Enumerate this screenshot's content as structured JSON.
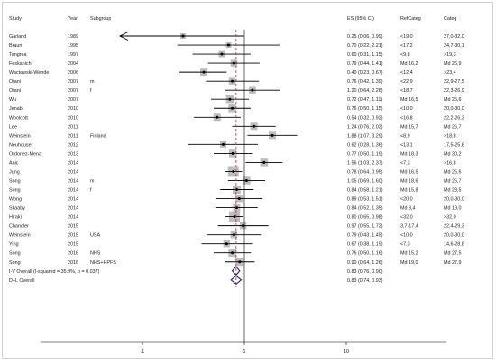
{
  "headers": {
    "study": "Study",
    "year": "Year",
    "subgroup": "Subgroup",
    "es": "ES (95% CI)",
    "refcat": "RefCateg",
    "categ": "Categ"
  },
  "chart_data": {
    "type": "forest",
    "xscale": "log",
    "xticks": [
      0.1,
      1,
      10
    ],
    "xtick_labels": [
      ".1",
      "1",
      "10"
    ],
    "null_line": 1,
    "pooled_line": 0.83,
    "rows": [
      {
        "study": "Garland",
        "year": "1989",
        "subgroup": "",
        "es": 0.25,
        "lo": 0.06,
        "hi": 0.99,
        "label": "0.25 (0.06, 0.99)",
        "ref": "<19,0",
        "cat": "27,0-32,0",
        "weight": 0.4
      },
      {
        "study": "Braun",
        "year": "1995",
        "subgroup": "",
        "es": 0.7,
        "lo": 0.22,
        "hi": 2.21,
        "label": "0.70 (0.22, 2.21)",
        "ref": "<17,2",
        "cat": "24,7-30,1",
        "weight": 0.4
      },
      {
        "study": "Tangrea",
        "year": "1997",
        "subgroup": "",
        "es": 0.6,
        "lo": 0.31,
        "hi": 1.15,
        "label": "0.60 (0.31, 1.15)",
        "ref": "<9,8",
        "cat": ">19,3",
        "weight": 0.6
      },
      {
        "study": "Feskanich",
        "year": "2004",
        "subgroup": "",
        "es": 0.79,
        "lo": 0.44,
        "hi": 1.41,
        "label": "0.79 (0.44, 1.41)",
        "ref": "Md 16,2",
        "cat": "Md 26,9",
        "weight": 0.7
      },
      {
        "study": "Wactawski-Wende",
        "year": "2006",
        "subgroup": "",
        "es": 0.4,
        "lo": 0.23,
        "hi": 0.67,
        "label": "0.40 (0.23, 0.67)",
        "ref": "<12,4",
        "cat": ">23,4",
        "weight": 0.8
      },
      {
        "study": "Otani",
        "year": "2007",
        "subgroup": "m",
        "es": 0.76,
        "lo": 0.42,
        "hi": 1.39,
        "label": "0.76 (0.42, 1.39)",
        "ref": "<22,9",
        "cat": "22,9-27,5",
        "weight": 0.7
      },
      {
        "study": "Otani",
        "year": "2007",
        "subgroup": "f",
        "es": 1.2,
        "lo": 0.64,
        "hi": 2.26,
        "label": "1.20 (0.64, 2.26)",
        "ref": "<18,7",
        "cat": "22,3-26,9",
        "weight": 0.7
      },
      {
        "study": "Wu",
        "year": "2007",
        "subgroup": "",
        "es": 0.72,
        "lo": 0.47,
        "hi": 1.11,
        "label": "0.72 (0.47, 1.11)",
        "ref": "Md 16,5",
        "cat": "Md 25,6",
        "weight": 0.9
      },
      {
        "study": "Jenab",
        "year": "2010",
        "subgroup": "",
        "es": 0.76,
        "lo": 0.5,
        "hi": 1.15,
        "label": "0.76 (0.50, 1.15)",
        "ref": "<10,0",
        "cat": "20,0-30,0",
        "weight": 0.9
      },
      {
        "study": "Woolcott",
        "year": "2010",
        "subgroup": "",
        "es": 0.54,
        "lo": 0.32,
        "hi": 0.92,
        "label": "0.54 (0.32, 0.92)",
        "ref": "<16,8",
        "cat": "22,2-26,3",
        "weight": 0.8
      },
      {
        "study": "Lee",
        "year": "2011",
        "subgroup": "",
        "es": 1.24,
        "lo": 0.76,
        "hi": 2.03,
        "label": "1.24 (0.76, 2.03)",
        "ref": "Md 15,7",
        "cat": "Md 26,7",
        "weight": 0.8
      },
      {
        "study": "Weinstein",
        "year": "2011",
        "subgroup": "Finland",
        "es": 1.88,
        "lo": 1.07,
        "hi": 3.29,
        "label": "1.88 (1.07, 3.29)",
        "ref": "<8,9",
        "cat": ">18,8",
        "weight": 0.8
      },
      {
        "study": "Neuhouser",
        "year": "2012",
        "subgroup": "",
        "es": 0.62,
        "lo": 0.28,
        "hi": 1.36,
        "label": "0.62 (0.28, 1.36)",
        "ref": "<13,1",
        "cat": "17,5-25,8",
        "weight": 0.6
      },
      {
        "study": "Ordonez-Mena",
        "year": "2013",
        "subgroup": "",
        "es": 0.77,
        "lo": 0.5,
        "hi": 1.19,
        "label": "0.77 (0.50, 1.19)",
        "ref": "Md 18,3",
        "cat": "Md 30,2",
        "weight": 0.9
      },
      {
        "study": "Anic",
        "year": "2014",
        "subgroup": "",
        "es": 1.56,
        "lo": 1.03,
        "hi": 2.37,
        "label": "1.56 (1.03, 2.37)",
        "ref": "<7,3",
        "cat": ">16,8",
        "weight": 0.9
      },
      {
        "study": "Jung",
        "year": "2014",
        "subgroup": "",
        "es": 0.78,
        "lo": 0.64,
        "hi": 0.95,
        "label": "0.78 (0.64, 0.95)",
        "ref": "Md 16,5",
        "cat": "Md 25,6",
        "weight": 1.6
      },
      {
        "study": "Song",
        "year": "2014",
        "subgroup": "m",
        "es": 1.05,
        "lo": 0.69,
        "hi": 1.6,
        "label": "1.05 (0.69, 1.60)",
        "ref": "Md 18,6",
        "cat": "Md 25,7",
        "weight": 0.9
      },
      {
        "study": "Song",
        "year": "2014",
        "subgroup": "f",
        "es": 0.84,
        "lo": 0.58,
        "hi": 1.21,
        "label": "0.84 (0.58, 1.21)",
        "ref": "Md 15,8",
        "cat": "Md 23,5",
        "weight": 1.0
      },
      {
        "study": "Wong",
        "year": "2014",
        "subgroup": "",
        "es": 0.89,
        "lo": 0.53,
        "hi": 1.51,
        "label": "0.89 (0.53, 1.51)",
        "ref": "<20,0",
        "cat": "20,0-30,0",
        "weight": 0.8
      },
      {
        "study": "Skaaby",
        "year": "2014",
        "subgroup": "",
        "es": 0.84,
        "lo": 0.52,
        "hi": 1.35,
        "label": "0.84 (0.52, 1.35)",
        "ref": "Md 8,4",
        "cat": "Md 19,0",
        "weight": 0.8
      },
      {
        "study": "Hiraki",
        "year": "2014",
        "subgroup": "",
        "es": 0.8,
        "lo": 0.65,
        "hi": 0.98,
        "label": "0.80 (0.65, 0.98)",
        "ref": "<32,0",
        "cat": ">32,0",
        "weight": 1.6
      },
      {
        "study": "Chandler",
        "year": "2015",
        "subgroup": "",
        "es": 0.97,
        "lo": 0.55,
        "hi": 1.72,
        "label": "0.97 (0.55, 1.72)",
        "ref": "3,7-17,4",
        "cat": "22,4-29,3",
        "weight": 0.7
      },
      {
        "study": "Weinstein",
        "year": "2015",
        "subgroup": "USA",
        "es": 0.79,
        "lo": 0.43,
        "hi": 1.45,
        "label": "0.79 (0.43, 1.45)",
        "ref": "<10,0",
        "cat": "20,0-30,0",
        "weight": 0.7
      },
      {
        "study": "Ying",
        "year": "2015",
        "subgroup": "",
        "es": 0.67,
        "lo": 0.38,
        "hi": 1.19,
        "label": "0.67 (0.38, 1.19)",
        "ref": "<7,3",
        "cat": "14,6-28,8",
        "weight": 0.7
      },
      {
        "study": "Song",
        "year": "2016",
        "subgroup": "NHS",
        "es": 0.76,
        "lo": 0.5,
        "hi": 1.16,
        "label": "0.76 (0.50, 1.16)",
        "ref": "Md 15,2",
        "cat": "Md 27,5",
        "weight": 0.9
      },
      {
        "study": "Song",
        "year": "2016",
        "subgroup": "NHS+HPFS",
        "es": 0.9,
        "lo": 0.64,
        "hi": 1.26,
        "label": "0.90 (0.64, 1.26)",
        "ref": "Md 19,0",
        "cat": "Md 27,9",
        "weight": 1.0
      }
    ],
    "overall": [
      {
        "label": "I-V Overall  (I-squared = 35.9%, p = 0.037)",
        "es": 0.83,
        "lo": 0.76,
        "hi": 0.9,
        "ci_label": "0.83 (0.76, 0.90)"
      },
      {
        "label": "D+L Overall",
        "es": 0.83,
        "lo": 0.74,
        "hi": 0.93,
        "ci_label": "0.83 (0.74, 0.93)"
      }
    ],
    "colors": {
      "ci": "#000000",
      "box": "#bdbdbd",
      "diamond": "#1a1f8c",
      "pooled_line": "#c8202a"
    }
  }
}
